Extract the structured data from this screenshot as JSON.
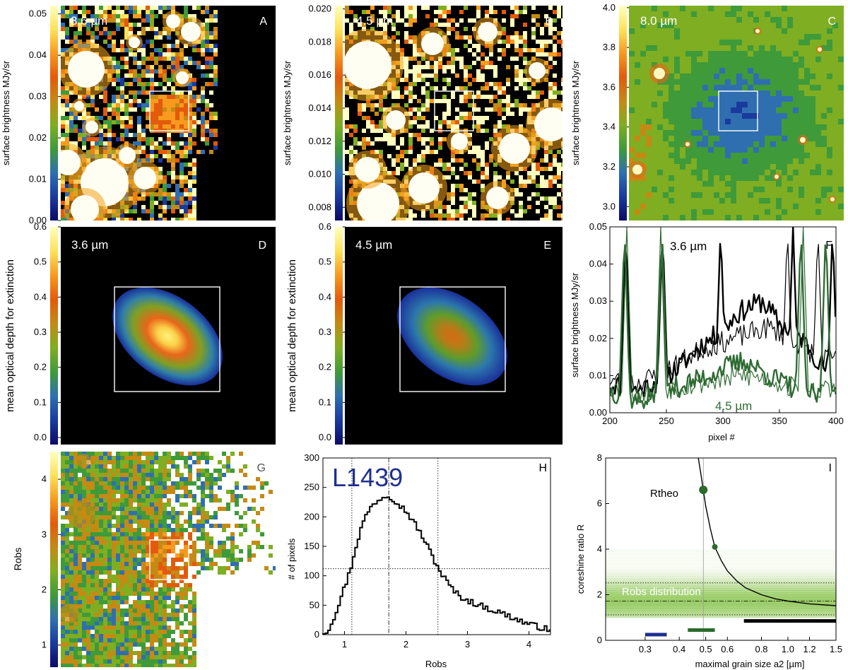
{
  "colors": {
    "colormap": [
      "#0b0a66",
      "#1a3a9e",
      "#2f6fb0",
      "#3f9a3a",
      "#7fae22",
      "#c48a14",
      "#e35a0c",
      "#f79a1e",
      "#fde25a",
      "#ffffbf"
    ],
    "map_background": "#000000",
    "green_line": "#2e6b33",
    "obs_band": "#7fbf3f",
    "dot_green": "#2b6a2a",
    "bar_blue": "#1d2f8f",
    "bar_green": "#2b6a2a",
    "bar_black": "#000000",
    "label_L1439": "#1f2f8f"
  },
  "chart_data": [
    {
      "id": "A",
      "type": "heatmap",
      "panel_letter": "A",
      "wavelength": "3.6 µm",
      "ylabel": "surface brightness MJy/sr",
      "colorbar_ticks": [
        "0.00",
        "0.01",
        "0.02",
        "0.03",
        "0.04",
        "0.05"
      ],
      "colorbar_range": [
        0.0,
        0.052
      ]
    },
    {
      "id": "B",
      "type": "heatmap",
      "panel_letter": "B",
      "wavelength": "4.5 µm",
      "ylabel": "surface brightness MJy/sr",
      "colorbar_ticks": [
        "0.008",
        "0.010",
        "0.012",
        "0.014",
        "0.016",
        "0.018",
        "0.020"
      ],
      "colorbar_range": [
        0.0072,
        0.0202
      ]
    },
    {
      "id": "C",
      "type": "heatmap",
      "panel_letter": "C",
      "wavelength": "8.0 µm",
      "ylabel": "surface brightness MJy/sr",
      "colorbar_ticks": [
        "3.0",
        "3.2",
        "3.4",
        "3.6",
        "3.8",
        "4.0"
      ],
      "colorbar_range": [
        2.93,
        4.01
      ]
    },
    {
      "id": "D",
      "type": "heatmap",
      "panel_letter": "D",
      "wavelength": "3.6 µm",
      "ylabel": "mean optical depth for extinction",
      "colorbar_ticks": [
        "0.0",
        "0.1",
        "0.2",
        "0.3",
        "0.4",
        "0.5",
        "0.6"
      ],
      "colorbar_range": [
        -0.02,
        0.6
      ],
      "peak_value": 0.3
    },
    {
      "id": "E",
      "type": "heatmap",
      "panel_letter": "E",
      "wavelength": "4.5 µm",
      "ylabel": "mean optical depth for extinction",
      "colorbar_ticks": [
        "0.0",
        "0.1",
        "0.2",
        "0.3",
        "0.4",
        "0.5",
        "0.6"
      ],
      "colorbar_range": [
        -0.02,
        0.6
      ],
      "peak_value": 0.22
    },
    {
      "id": "F",
      "type": "line",
      "panel_letter": "F",
      "xlabel": "pixel #",
      "ylabel": "surface brightness MJy/sr",
      "xlim": [
        200,
        400
      ],
      "ylim": [
        0.0,
        0.05
      ],
      "xticks": [
        "200",
        "250",
        "300",
        "350",
        "400"
      ],
      "yticks": [
        "0.00",
        "0.01",
        "0.02",
        "0.03",
        "0.04",
        "0.05"
      ],
      "annotations": [
        "3.6 µm",
        "4.5 µm"
      ],
      "series": [
        {
          "profile": [
            [
              200,
              0.008
            ],
            [
              225,
              0.006
            ],
            [
              240,
              0.008
            ],
            [
              260,
              0.012
            ],
            [
              280,
              0.018
            ],
            [
              300,
              0.022
            ],
            [
              310,
              0.026
            ],
            [
              320,
              0.028
            ],
            [
              335,
              0.03
            ],
            [
              350,
              0.024
            ],
            [
              370,
              0.02
            ],
            [
              390,
              0.012
            ],
            [
              400,
              0.01
            ]
          ],
          "spikes": [
            [
              214,
              0.05
            ],
            [
              246,
              0.05
            ],
            [
              298,
              0.05
            ],
            [
              362,
              0.05
            ],
            [
              397,
              0.05
            ]
          ],
          "color": "black",
          "width": 2.4,
          "seed": 11
        },
        {
          "profile": [
            [
              200,
              0.009
            ],
            [
              225,
              0.008
            ],
            [
              240,
              0.01
            ],
            [
              260,
              0.013
            ],
            [
              280,
              0.017
            ],
            [
              300,
              0.019
            ],
            [
              320,
              0.021
            ],
            [
              340,
              0.023
            ],
            [
              360,
              0.02
            ],
            [
              380,
              0.016
            ],
            [
              400,
              0.014
            ]
          ],
          "spikes": [
            [
              214,
              0.05
            ],
            [
              247,
              0.05
            ],
            [
              357,
              0.05
            ],
            [
              384,
              0.05
            ]
          ],
          "color": "black",
          "width": 1.2,
          "seed": 23
        },
        {
          "profile": [
            [
              200,
              0.006
            ],
            [
              225,
              0.003
            ],
            [
              240,
              0.005
            ],
            [
              260,
              0.007
            ],
            [
              280,
              0.009
            ],
            [
              300,
              0.012
            ],
            [
              320,
              0.014
            ],
            [
              340,
              0.01
            ],
            [
              360,
              0.007
            ],
            [
              380,
              0.005
            ],
            [
              400,
              0.004
            ]
          ],
          "spikes": [
            [
              213,
              0.05
            ],
            [
              246,
              0.05
            ],
            [
              369,
              0.05
            ],
            [
              391,
              0.05
            ]
          ],
          "color": "green",
          "width": 2.4,
          "seed": 37
        },
        {
          "profile": [
            [
              200,
              0.007
            ],
            [
              225,
              0.005
            ],
            [
              240,
              0.006
            ],
            [
              260,
              0.007
            ],
            [
              280,
              0.008
            ],
            [
              300,
              0.009
            ],
            [
              320,
              0.01
            ],
            [
              340,
              0.009
            ],
            [
              360,
              0.007
            ],
            [
              380,
              0.006
            ],
            [
              400,
              0.006
            ]
          ],
          "spikes": [
            [
              215,
              0.05
            ],
            [
              245,
              0.05
            ],
            [
              371,
              0.05
            ]
          ],
          "color": "green",
          "width": 1.2,
          "seed": 53
        }
      ]
    },
    {
      "id": "G",
      "type": "heatmap",
      "panel_letter": "G",
      "ylabel": "Robs",
      "colorbar_ticks": [
        "1",
        "2",
        "3",
        "4"
      ],
      "colorbar_range": [
        0.6,
        4.5
      ]
    },
    {
      "id": "H",
      "type": "histogram",
      "panel_letter": "H",
      "object_label": "L1439",
      "xlabel": "Robs",
      "ylabel": "# of pixels",
      "xlim": [
        0.65,
        4.35
      ],
      "ylim": [
        0,
        300
      ],
      "xticks": [
        "1",
        "2",
        "3",
        "4"
      ],
      "yticks": [
        "0",
        "50",
        "100",
        "150",
        "200",
        "250",
        "300"
      ],
      "bin_width": 0.04,
      "curve_points": [
        [
          0.65,
          2
        ],
        [
          0.75,
          10
        ],
        [
          0.85,
          35
        ],
        [
          0.95,
          65
        ],
        [
          1.05,
          95
        ],
        [
          1.1,
          112
        ],
        [
          1.2,
          155
        ],
        [
          1.3,
          190
        ],
        [
          1.4,
          212
        ],
        [
          1.5,
          225
        ],
        [
          1.6,
          232
        ],
        [
          1.7,
          238
        ],
        [
          1.8,
          230
        ],
        [
          1.9,
          220
        ],
        [
          2.0,
          210
        ],
        [
          2.1,
          195
        ],
        [
          2.2,
          180
        ],
        [
          2.3,
          160
        ],
        [
          2.4,
          140
        ],
        [
          2.5,
          118
        ],
        [
          2.6,
          100
        ],
        [
          2.7,
          85
        ],
        [
          2.8,
          72
        ],
        [
          2.9,
          64
        ],
        [
          3.0,
          58
        ],
        [
          3.2,
          50
        ],
        [
          3.4,
          42
        ],
        [
          3.6,
          35
        ],
        [
          3.8,
          26
        ],
        [
          4.0,
          18
        ],
        [
          4.2,
          12
        ],
        [
          4.35,
          8
        ]
      ],
      "vlines": [
        {
          "x": 1.12,
          "style": "dotted"
        },
        {
          "x": 1.72,
          "style": "dashdot"
        },
        {
          "x": 2.52,
          "style": "dotted"
        }
      ],
      "hline": 112
    },
    {
      "id": "I",
      "type": "line",
      "panel_letter": "I",
      "xlabel": "maximal grain size a2 [µm]",
      "ylabel": "coreshine ratio R",
      "x_scale": "log",
      "xlim": [
        0.215,
        1.5
      ],
      "ylim": [
        0,
        8
      ],
      "xticks": [
        "0.3",
        "0.4",
        "0.5",
        "0.6",
        "0.8",
        "1.0",
        "1.2",
        "1.5"
      ],
      "yticks": [
        "0",
        "2",
        "4",
        "6",
        "8"
      ],
      "rtheo_label": "Rtheo",
      "robs_label": "Robs distribution",
      "rtheo_curve": [
        [
          0.47,
          8.0
        ],
        [
          0.48,
          7.3
        ],
        [
          0.49,
          6.6
        ],
        [
          0.5,
          5.9
        ],
        [
          0.52,
          4.9
        ],
        [
          0.54,
          4.1
        ],
        [
          0.57,
          3.5
        ],
        [
          0.6,
          3.05
        ],
        [
          0.65,
          2.6
        ],
        [
          0.7,
          2.3
        ],
        [
          0.8,
          2.0
        ],
        [
          0.9,
          1.82
        ],
        [
          1.0,
          1.72
        ],
        [
          1.2,
          1.6
        ],
        [
          1.5,
          1.52
        ]
      ],
      "points": [
        {
          "x": 0.49,
          "y": 6.6,
          "size": "large"
        },
        {
          "x": 0.54,
          "y": 4.1,
          "size": "small"
        }
      ],
      "obs_band": [
        1.0,
        4.0
      ],
      "obs_median": 1.72,
      "bars": [
        {
          "x0": 0.3,
          "x1": 0.36,
          "y": 0.25,
          "color": "blue"
        },
        {
          "x0": 0.43,
          "x1": 0.54,
          "y": 0.45,
          "color": "green"
        },
        {
          "x0": 0.69,
          "x1": 1.5,
          "y": 0.85,
          "color": "black"
        }
      ]
    }
  ]
}
